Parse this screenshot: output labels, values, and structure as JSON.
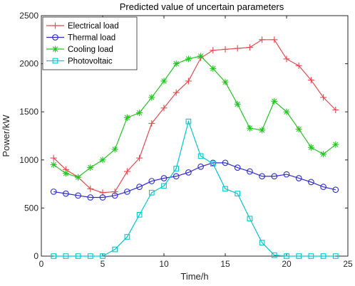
{
  "chart_data": {
    "type": "line",
    "title": "Predicted value of uncertain parameters",
    "xlabel": "Time/h",
    "ylabel": "Power/kW",
    "xlim": [
      0,
      25
    ],
    "ylim": [
      0,
      2500
    ],
    "xticks": [
      "0",
      "5",
      "10",
      "15",
      "20",
      "25"
    ],
    "yticks": [
      "0",
      "500",
      "1000",
      "1500",
      "2000",
      "2500"
    ],
    "grid": false,
    "legend_position": "top-left",
    "x": [
      1,
      2,
      3,
      4,
      5,
      6,
      7,
      8,
      9,
      10,
      11,
      12,
      13,
      14,
      15,
      16,
      17,
      18,
      19,
      20,
      21,
      22,
      23,
      24
    ],
    "series": [
      {
        "name": "Electrical load",
        "color": "#e8484c",
        "marker": "plus",
        "values": [
          1020,
          900,
          820,
          700,
          660,
          670,
          880,
          1020,
          1380,
          1540,
          1700,
          1820,
          2060,
          2140,
          2150,
          2160,
          2170,
          2250,
          2250,
          2050,
          1980,
          1830,
          1650,
          1520
        ]
      },
      {
        "name": "Thermal load",
        "color": "#2b2bd0",
        "marker": "circle",
        "values": [
          670,
          650,
          630,
          610,
          610,
          630,
          670,
          720,
          780,
          810,
          830,
          870,
          930,
          970,
          970,
          920,
          880,
          830,
          830,
          850,
          810,
          770,
          720,
          690
        ]
      },
      {
        "name": "Cooling load",
        "color": "#1ec81e",
        "marker": "asterisk",
        "values": [
          950,
          860,
          820,
          920,
          1000,
          1110,
          1440,
          1490,
          1650,
          1820,
          2000,
          2050,
          2080,
          1950,
          1810,
          1580,
          1330,
          1310,
          1610,
          1500,
          1320,
          1130,
          1060,
          1160
        ]
      },
      {
        "name": "Photovoltaic",
        "color": "#00c8d0",
        "marker": "square",
        "values": [
          0,
          0,
          0,
          0,
          0,
          70,
          200,
          430,
          660,
          730,
          910,
          1400,
          1040,
          960,
          700,
          650,
          390,
          140,
          10,
          0,
          0,
          0,
          0,
          0
        ]
      }
    ]
  }
}
